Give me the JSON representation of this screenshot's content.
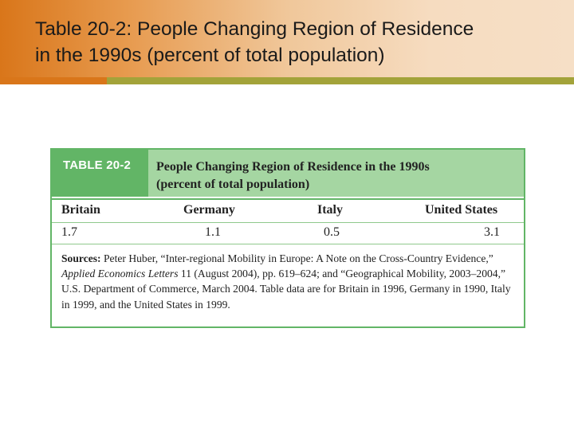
{
  "slide": {
    "title_line1": "Table 20-2: People Changing Region of Residence",
    "title_line2": "in the 1990s (percent of total population)"
  },
  "table": {
    "label": "TABLE 20-2",
    "title_line1": "People Changing Region of Residence in the 1990s",
    "title_line2": "(percent of total population)",
    "columns": [
      "Britain",
      "Germany",
      "Italy",
      "United States"
    ],
    "values": [
      "1.7",
      "1.1",
      "0.5",
      "3.1"
    ],
    "sources": {
      "label": "Sources:",
      "text_a": " Peter Huber, “Inter-regional Mobility in Europe: A Note on the Cross-Country Evidence,” ",
      "journal": "Applied Economics Letters",
      "text_b": " 11 (August 2004), pp. 619–624; and “Geographical Mobility, 2003–2004,” U.S. Department of Commerce, March 2004. Table data are for Britain in 1996, Germany in 1990, Italy in 1999, and the United States in 1999."
    }
  },
  "colors": {
    "table_green": "#62b566",
    "header_green_light": "#a5d6a2",
    "header_orange": "#d9761a",
    "rule_olive": "#a3a33a"
  }
}
